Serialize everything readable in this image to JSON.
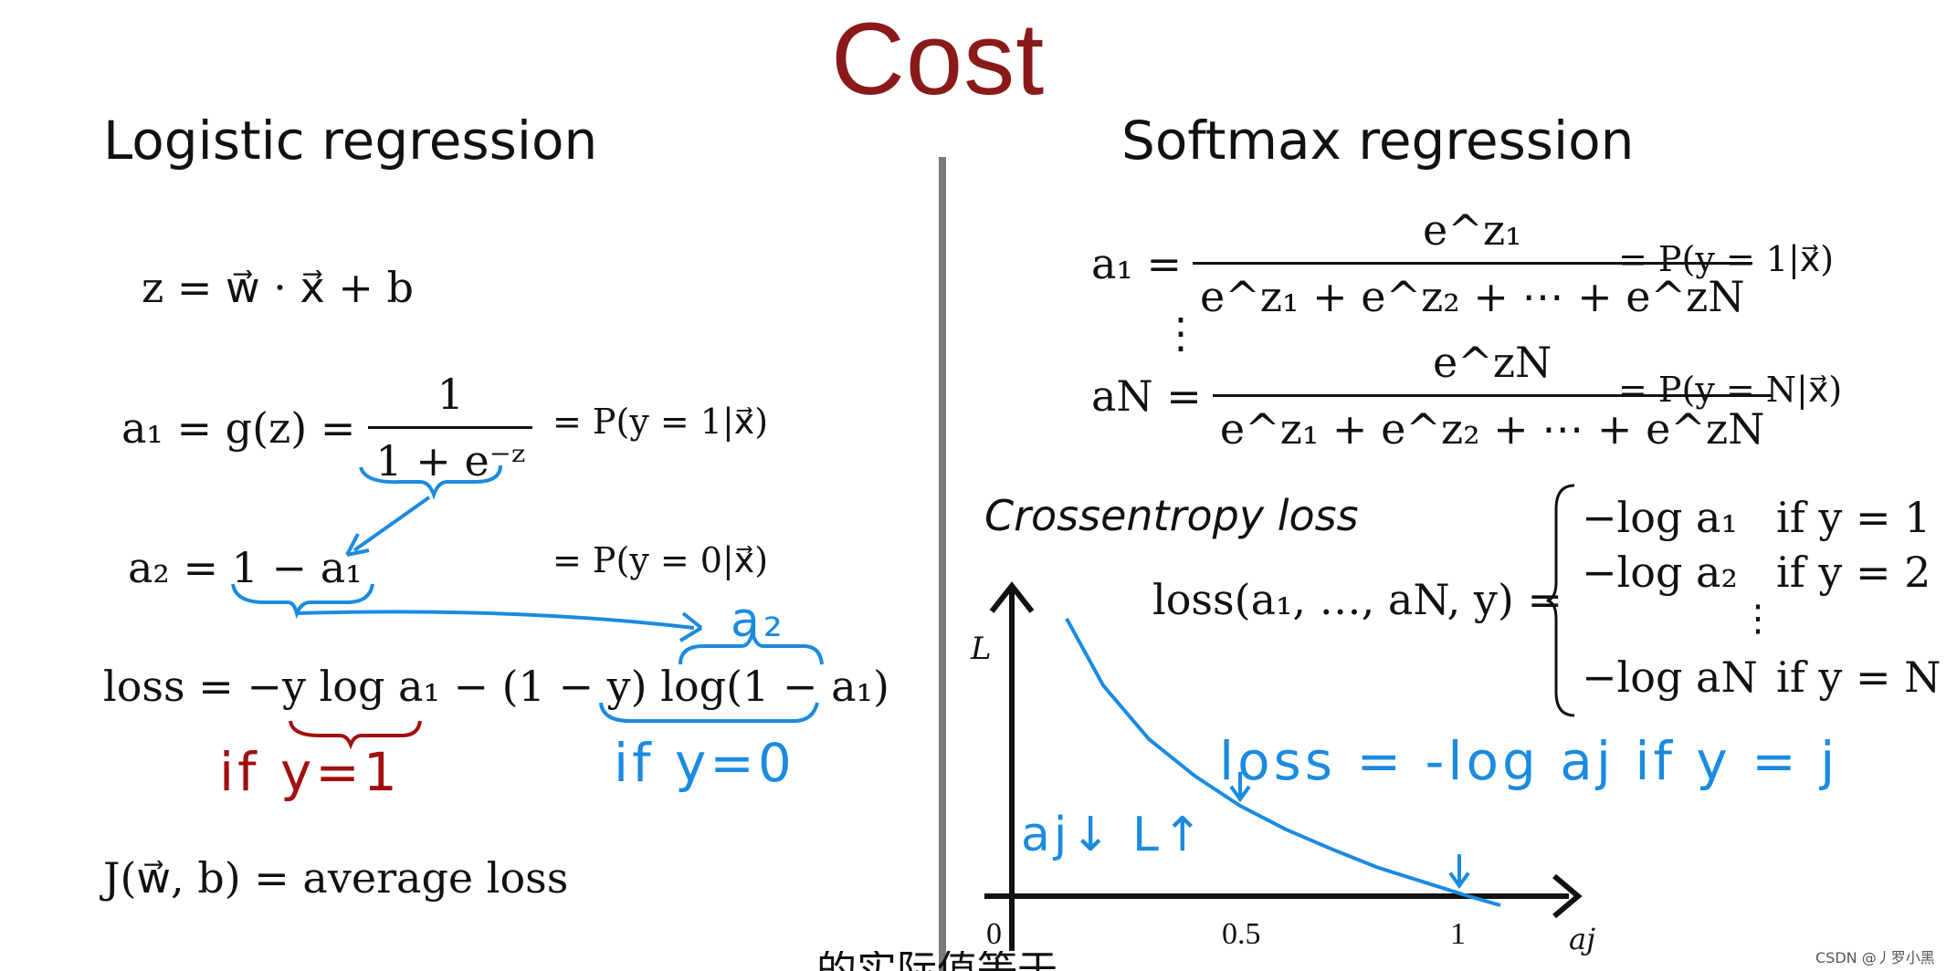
{
  "title": "Cost",
  "left": {
    "heading": "Logistic regression",
    "z_eq": "z = w⃗ · x⃗ + b",
    "a1_lhs": "a₁ = g(z) =",
    "a1_num": "1",
    "a1_den": "1 + e⁻ᶻ",
    "a1_prob": "= P(y = 1|x⃗)",
    "a2_eq": "a₂ = 1 − a₁",
    "a2_prob": "= P(y = 0|x⃗)",
    "loss_eq": "loss = −y log a₁ − (1 − y) log(1 − a₁)",
    "note_a2": "a₂",
    "note_if_y1": "if y=1",
    "note_if_y0": "if y=0",
    "cost_eq": "J(w⃗, b) = average loss"
  },
  "right": {
    "heading": "Softmax regression",
    "a1_lhs": "a₁ =",
    "a1_num": "e^z₁",
    "a1_den": "e^z₁ + e^z₂ + ⋯ + e^zN",
    "a1_prob": "= P(y = 1|x⃗)",
    "vdots": "⋮",
    "aN_lhs": "aN =",
    "aN_num": "e^zN",
    "aN_den": "e^z₁ + e^z₂ + ⋯ + e^zN",
    "aN_prob": "= P(y = N|x⃗)",
    "ce_heading": "Crossentropy loss",
    "loss_lhs": "loss(a₁, …, aN, y) =",
    "cases": [
      {
        "expr": "−log a₁",
        "cond": "if y = 1"
      },
      {
        "expr": "−log a₂",
        "cond": "if y = 2"
      },
      {
        "expr": "⋮",
        "cond": ""
      },
      {
        "expr": "−log aN",
        "cond": "if y = N"
      }
    ],
    "note_loss": "loss = -log aj  if y = j",
    "note_aj_down": "aj↓",
    "note_L_up": "L↑"
  },
  "chart_data": {
    "type": "line",
    "xlabel": "aj",
    "ylabel": "L",
    "x_ticks": [
      "0",
      "0.5",
      "1"
    ],
    "series": [
      {
        "x": [
          0.12,
          0.2,
          0.3,
          0.4,
          0.5,
          0.6,
          0.7,
          0.8,
          0.9,
          1.0,
          1.07
        ],
        "y": [
          2.12,
          1.61,
          1.2,
          0.92,
          0.69,
          0.51,
          0.36,
          0.22,
          0.11,
          0.0,
          -0.07
        ]
      }
    ],
    "xlim": [
      0,
      1.2
    ],
    "ylim": [
      0,
      2.3
    ],
    "color": "#1a8be0"
  },
  "watermark": "CSDN @丿罗小黑",
  "subtitle_fragment": "…的实际值等于…"
}
